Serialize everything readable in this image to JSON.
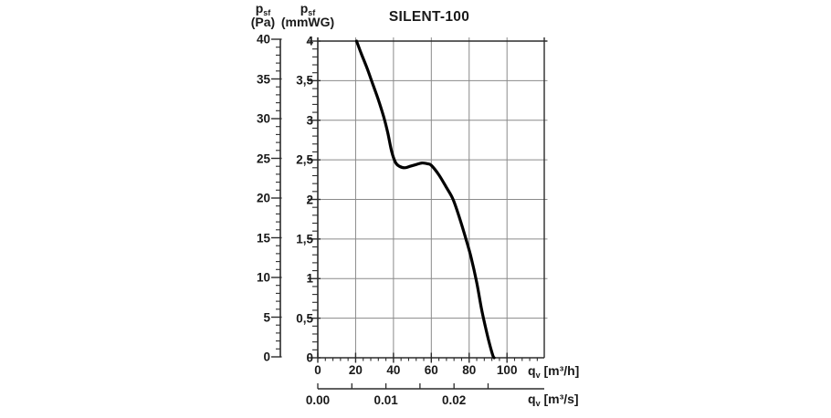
{
  "title": "SILENT-100",
  "axes": {
    "pressure_pa": {
      "symbol": "p",
      "symbol_sub": "sf",
      "unit": "(Pa)",
      "tick_labels": [
        "40",
        "35",
        "30",
        "25",
        "20",
        "15",
        "10",
        "5",
        "0"
      ]
    },
    "pressure_mmwg": {
      "symbol": "p",
      "symbol_sub": "sf",
      "unit": "(mmWG)",
      "tick_labels": [
        "4",
        "3,5",
        "3",
        "2,5",
        "2",
        "1,5",
        "1",
        "0,5",
        "0"
      ]
    },
    "flow_m3h": {
      "symbol": "q",
      "symbol_sub": "v",
      "unit": "[m³/h]",
      "tick_labels": [
        "0",
        "20",
        "40",
        "60",
        "80",
        "100"
      ]
    },
    "flow_m3s": {
      "symbol": "q",
      "symbol_sub": "v",
      "unit": "[m³/s]",
      "tick_labels": [
        "0.00",
        "0.01",
        "0.02"
      ]
    }
  },
  "chart_data": {
    "type": "line",
    "title": "SILENT-100",
    "grid": true,
    "x_axis": {
      "label": "qv [m³/h]",
      "range": [
        0,
        120
      ],
      "major_ticks": [
        0,
        20,
        40,
        60,
        80,
        100
      ],
      "minor_step": 4
    },
    "x_axis_secondary": {
      "label": "qv [m³/s]",
      "labeled_ticks": [
        0.0,
        0.01,
        0.02
      ],
      "tick_step": 0.005,
      "tick_max": 0.025,
      "m3s_to_m3h": 3600
    },
    "y_axis": {
      "label": "psf (mmWG)",
      "range": [
        0,
        4
      ],
      "major_step": 0.5,
      "minor_step": 0.1
    },
    "y_axis_secondary": {
      "label": "psf (Pa)",
      "range": [
        0,
        40
      ],
      "major_step": 5,
      "minor_step": 1
    },
    "series": [
      {
        "name": "SILENT-100 fan curve",
        "x_units": "m3/h",
        "y_units": "mmWG",
        "color": "#000000",
        "points": [
          [
            20.5,
            4.0
          ],
          [
            23,
            3.84
          ],
          [
            26,
            3.66
          ],
          [
            29,
            3.46
          ],
          [
            32,
            3.26
          ],
          [
            35,
            3.03
          ],
          [
            37,
            2.84
          ],
          [
            39,
            2.61
          ],
          [
            41,
            2.47
          ],
          [
            43,
            2.42
          ],
          [
            46,
            2.4
          ],
          [
            49,
            2.42
          ],
          [
            52,
            2.44
          ],
          [
            55,
            2.46
          ],
          [
            58,
            2.45
          ],
          [
            60,
            2.43
          ],
          [
            64,
            2.31
          ],
          [
            68,
            2.15
          ],
          [
            71.5,
            2.0
          ],
          [
            75,
            1.76
          ],
          [
            78.3,
            1.5
          ],
          [
            81,
            1.27
          ],
          [
            84,
            0.95
          ],
          [
            86.5,
            0.62
          ],
          [
            88.5,
            0.4
          ],
          [
            90.5,
            0.2
          ],
          [
            92.5,
            0.03
          ],
          [
            93.2,
            0.0
          ]
        ]
      }
    ]
  },
  "colors": {
    "background": "#ffffff",
    "grid": "#8a8a8a",
    "border": "#2b2b2b",
    "curve": "#000000",
    "text": "#1a1a1a"
  }
}
